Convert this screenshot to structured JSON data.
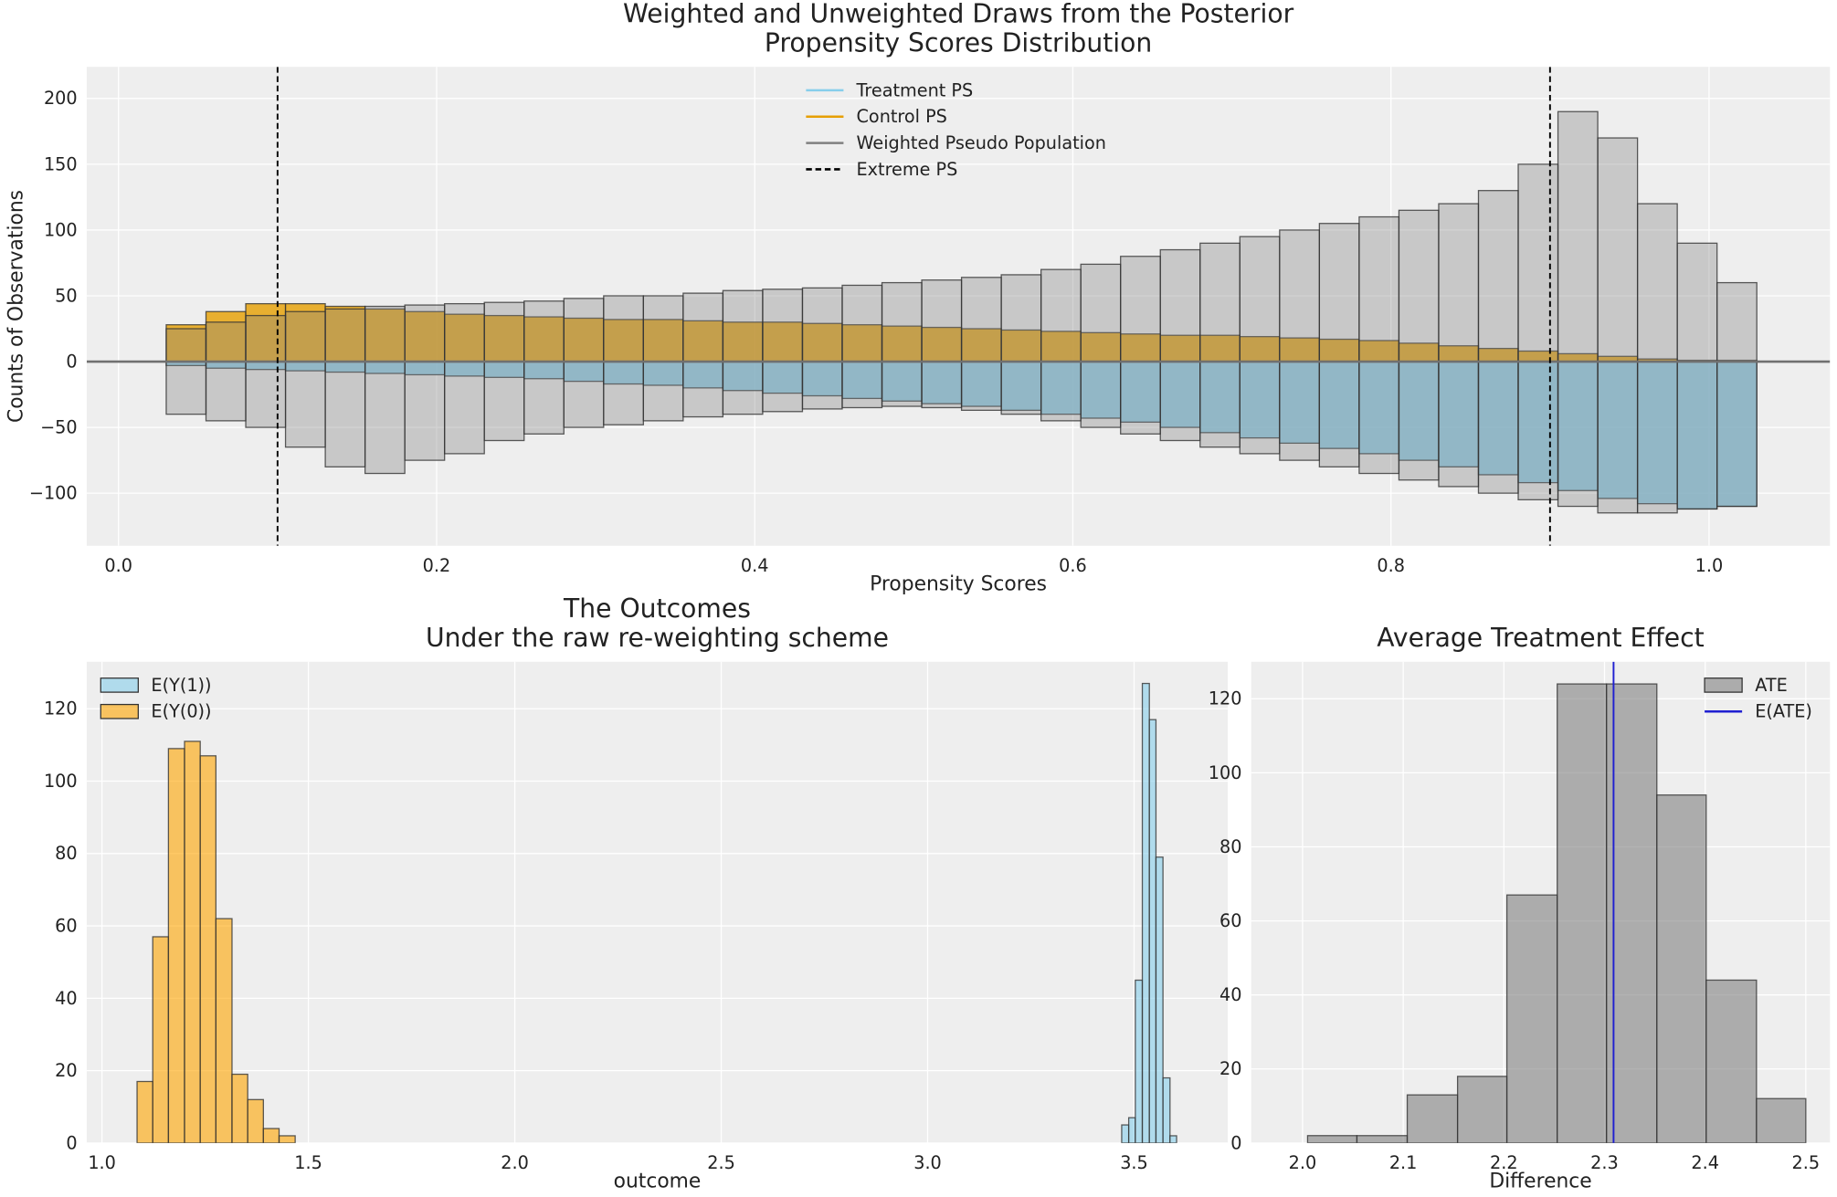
{
  "chart_data": [
    {
      "type": "histogram",
      "title": [
        "Weighted and Unweighted Draws from the Posterior",
        "Propensity Scores Distribution"
      ],
      "xlabel": "Propensity Scores",
      "ylabel": "Counts of Observations",
      "xlim": [
        -0.02,
        1.076
      ],
      "ylim": [
        -140,
        224
      ],
      "xticks": [
        {
          "value": 0,
          "label": "0.0"
        },
        0.2,
        0.4,
        0.6,
        0.8,
        {
          "value": 1,
          "label": "1.0"
        }
      ],
      "yticks": [
        {
          "value": -100,
          "label": "−100"
        },
        {
          "value": -50,
          "label": "−50"
        },
        0,
        50,
        100,
        150,
        200
      ],
      "grid": true,
      "legend": "upper center",
      "legend_marker": "line",
      "bins": [
        0.03,
        0.055,
        0.08,
        0.105,
        0.13,
        0.155,
        0.18,
        0.205,
        0.23,
        0.255,
        0.28,
        0.305,
        0.33,
        0.355,
        0.38,
        0.405,
        0.43,
        0.455,
        0.48,
        0.505,
        0.53,
        0.555,
        0.58,
        0.605,
        0.63,
        0.655,
        0.68,
        0.705,
        0.73,
        0.755,
        0.78,
        0.805,
        0.83,
        0.855,
        0.88,
        0.905,
        0.93,
        0.955,
        0.98,
        1.005,
        1.03
      ],
      "series": [
        {
          "name": "Treatment PS",
          "color": "#87ceeb",
          "values": [
            -3,
            -5,
            -6,
            -7,
            -8,
            -9,
            -10,
            -11,
            -12,
            -13,
            -15,
            -17,
            -18,
            -20,
            -22,
            -24,
            -26,
            -28,
            -30,
            -32,
            -34,
            -37,
            -40,
            -43,
            -46,
            -50,
            -54,
            -58,
            -62,
            -66,
            -70,
            -75,
            -80,
            -86,
            -92,
            -98,
            -104,
            -108,
            -112,
            -110
          ]
        },
        {
          "name": "Control PS",
          "color": "#e69f00",
          "values": [
            28,
            38,
            44,
            44,
            42,
            40,
            38,
            36,
            35,
            34,
            33,
            32,
            32,
            31,
            30,
            30,
            29,
            28,
            27,
            26,
            25,
            24,
            23,
            22,
            21,
            20,
            20,
            19,
            18,
            17,
            16,
            14,
            12,
            10,
            8,
            6,
            4,
            2,
            1,
            1
          ]
        },
        {
          "name": "Weighted Pseudo Population",
          "color": "#808080",
          "values": [
            25,
            30,
            35,
            38,
            40,
            42,
            43,
            44,
            45,
            46,
            48,
            50,
            50,
            52,
            54,
            55,
            56,
            58,
            60,
            62,
            64,
            66,
            70,
            74,
            80,
            85,
            90,
            95,
            100,
            105,
            110,
            115,
            120,
            130,
            150,
            190,
            170,
            120,
            90,
            60
          ],
          "values_below": [
            -40,
            -45,
            -50,
            -65,
            -80,
            -85,
            -75,
            -70,
            -60,
            -55,
            -50,
            -48,
            -45,
            -42,
            -40,
            -38,
            -36,
            -35,
            -34,
            -35,
            -37,
            -40,
            -45,
            -50,
            -55,
            -60,
            -65,
            -70,
            -75,
            -80,
            -85,
            -90,
            -95,
            -100,
            -105,
            -110,
            -115,
            -115,
            -112,
            -110
          ]
        }
      ],
      "hlines": [
        {
          "y": 0,
          "color": "#707070"
        }
      ],
      "reference_lines": [
        {
          "name": "Extreme PS",
          "color": "#000000",
          "dashed": true,
          "x": [
            0.1,
            0.9
          ]
        }
      ]
    },
    {
      "type": "histogram",
      "title": [
        "The Outcomes",
        "Under the raw re-weighting scheme"
      ],
      "xlabel": "outcome",
      "xlim": [
        0.963,
        3.727
      ],
      "ylim": [
        0,
        133
      ],
      "xticks": [
        {
          "value": 1,
          "label": "1.0"
        },
        1.5,
        {
          "value": 2,
          "label": "2.0"
        },
        2.5,
        {
          "value": 3,
          "label": "3.0"
        },
        3.5
      ],
      "yticks": [
        0,
        20,
        40,
        60,
        80,
        100,
        120
      ],
      "grid": true,
      "legend": "upper left",
      "legend_marker": "patch",
      "series": [
        {
          "name": "E(Y(1))",
          "color": "#87ceeb",
          "bins": [
            3.47,
            3.487,
            3.503,
            3.52,
            3.537,
            3.553,
            3.57,
            3.587,
            3.603
          ],
          "values": [
            5,
            7,
            45,
            127,
            117,
            79,
            18,
            2
          ]
        },
        {
          "name": "E(Y(0))",
          "color": "#ffa500",
          "bins": [
            1.085,
            1.123,
            1.161,
            1.2,
            1.238,
            1.276,
            1.315,
            1.353,
            1.391,
            1.429,
            1.468
          ],
          "values": [
            17,
            57,
            109,
            111,
            107,
            62,
            19,
            12,
            4,
            2
          ]
        }
      ]
    },
    {
      "type": "histogram",
      "title": [
        "Average Treatment Effect"
      ],
      "xlabel": "Difference",
      "xlim": [
        1.949,
        2.524
      ],
      "ylim": [
        0,
        130
      ],
      "xticks": [
        {
          "value": 2,
          "label": "2.0"
        },
        2.1,
        2.2,
        2.3,
        2.4,
        2.5
      ],
      "yticks": [
        0,
        20,
        40,
        60,
        80,
        100,
        120
      ],
      "grid": true,
      "legend": "upper right",
      "legend_marker": "patch",
      "bins": [
        2.005,
        2.054,
        2.104,
        2.154,
        2.203,
        2.253,
        2.302,
        2.352,
        2.401,
        2.451,
        2.5
      ],
      "series": [
        {
          "name": "ATE",
          "color": "#808080",
          "values": [
            2,
            2,
            13,
            18,
            67,
            124,
            124,
            94,
            44,
            12
          ]
        }
      ],
      "reference_lines": [
        {
          "name": "E(ATE)",
          "color": "#1f1fd1",
          "dashed": false,
          "x": [
            2.309
          ]
        }
      ]
    }
  ]
}
